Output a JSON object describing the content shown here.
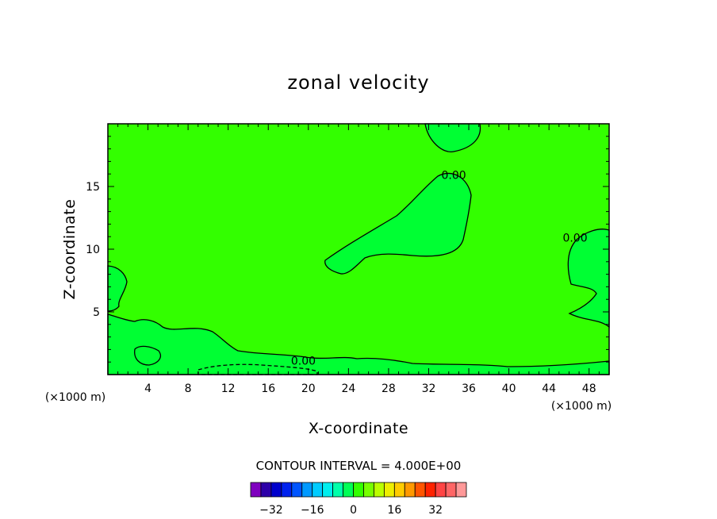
{
  "chart_data": {
    "type": "contour",
    "title": "zonal velocity",
    "xlabel": "X-coordinate",
    "ylabel": "Z-coordinate",
    "x_unit_left": "(×1000 m)",
    "x_unit_right": "(×1000 m)",
    "xlim": [
      0,
      50
    ],
    "ylim": [
      0,
      20
    ],
    "x_ticks": [
      4,
      8,
      12,
      16,
      20,
      24,
      28,
      32,
      36,
      40,
      44,
      48
    ],
    "x_tick_labels": [
      "4",
      "8",
      "12",
      "16",
      "20",
      "24",
      "28",
      "32",
      "36",
      "40",
      "44",
      "48"
    ],
    "y_ticks": [
      5,
      10,
      15
    ],
    "y_tick_labels": [
      "5",
      "10",
      "15"
    ],
    "background_color": "#33ff00",
    "region_color": "#00ff33",
    "contour_labels": [
      {
        "text": "0.00",
        "x": 34.5,
        "y": 15.6
      },
      {
        "text": "0.00",
        "x": 46.6,
        "y": 10.6
      },
      {
        "text": "0.00",
        "x": 19.5,
        "y": 0.8
      }
    ],
    "contour_interval_text": "CONTOUR INTERVAL = 4.000E+00",
    "colorbar": {
      "colors": [
        "#7f00bf",
        "#2d00a8",
        "#0000cc",
        "#0022ee",
        "#0055ff",
        "#0099ff",
        "#00ccff",
        "#00eeee",
        "#00ffaa",
        "#00ff55",
        "#33ff00",
        "#77ff00",
        "#bbff00",
        "#eeee00",
        "#ffcc00",
        "#ff9900",
        "#ff5500",
        "#ff2200",
        "#ff4444",
        "#ff6666",
        "#ff9999"
      ],
      "tick_values": [
        -32,
        -16,
        0,
        16,
        32
      ],
      "tick_labels": [
        "−32",
        "−16",
        "0",
        "16",
        "32"
      ]
    }
  }
}
